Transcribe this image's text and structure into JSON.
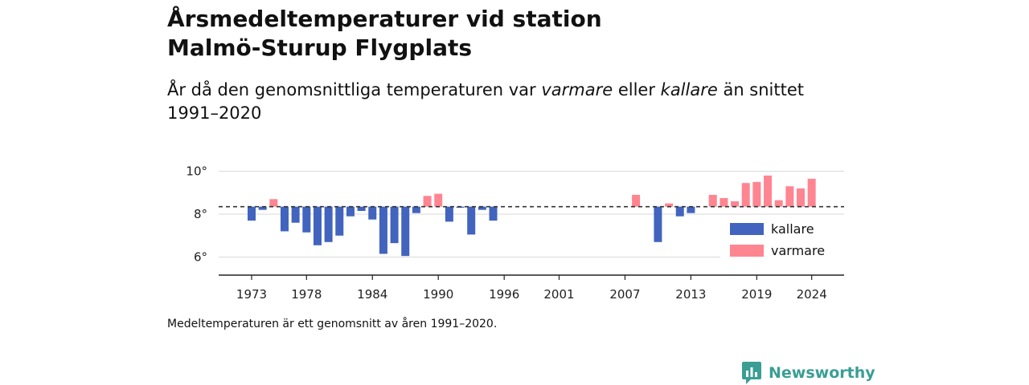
{
  "title": [
    "Årsmedeltemperaturer vid station",
    "Malmö-Sturup Flygplats"
  ],
  "subtitle_parts": [
    {
      "text": "År då den genomsnittliga temperaturen var ",
      "italic": false
    },
    {
      "text": "varmare",
      "italic": true
    },
    {
      "text": " eller ",
      "italic": false
    },
    {
      "text": "kallare",
      "italic": true
    },
    {
      "text": " än snittet",
      "italic": false
    }
  ],
  "subtitle_line2": "1991–2020",
  "footnote": "Medeltemperaturen är ett genomsnitt av åren 1991–2020.",
  "brand": "Newsworthy",
  "colors": {
    "kallare": "#4264be",
    "varmare": "#ff8591",
    "brand": "#3a9e94"
  },
  "chart_data": {
    "type": "bar",
    "baseline": 8.35,
    "ylim": [
      5.2,
      10.2
    ],
    "xlim": [
      1970,
      2027
    ],
    "y_ticks": [
      6,
      8,
      10
    ],
    "y_tick_labels": [
      "6°",
      "8°",
      "10°"
    ],
    "x_ticks": [
      1973,
      1978,
      1984,
      1990,
      1996,
      2001,
      2007,
      2013,
      2019,
      2024
    ],
    "x_tick_labels": [
      "1973",
      "1978",
      "1984",
      "1990",
      "1996",
      "2001",
      "2007",
      "2013",
      "2019",
      "2024"
    ],
    "legend": {
      "position": "bottom-right",
      "entries": [
        {
          "key": "kallare",
          "label": "kallare"
        },
        {
          "key": "varmare",
          "label": "varmare"
        }
      ]
    },
    "years": [
      1973,
      1974,
      1975,
      1976,
      1977,
      1978,
      1979,
      1980,
      1981,
      1982,
      1983,
      1984,
      1985,
      1986,
      1987,
      1988,
      1989,
      1990,
      1991,
      1992,
      1993,
      1994,
      1995,
      2008,
      2010,
      2011,
      2012,
      2013,
      2015,
      2016,
      2017,
      2018,
      2019,
      2020,
      2021,
      2022,
      2023,
      2024
    ],
    "values": [
      7.7,
      8.2,
      8.7,
      7.2,
      7.6,
      7.15,
      6.55,
      6.7,
      7.0,
      7.9,
      8.15,
      7.75,
      6.15,
      6.65,
      6.05,
      8.05,
      8.85,
      8.95,
      7.65,
      8.3,
      7.05,
      8.2,
      7.7,
      8.9,
      6.7,
      8.5,
      7.9,
      8.05,
      8.9,
      8.75,
      8.6,
      9.45,
      9.5,
      9.8,
      8.65,
      9.3,
      9.2,
      9.65
    ]
  }
}
